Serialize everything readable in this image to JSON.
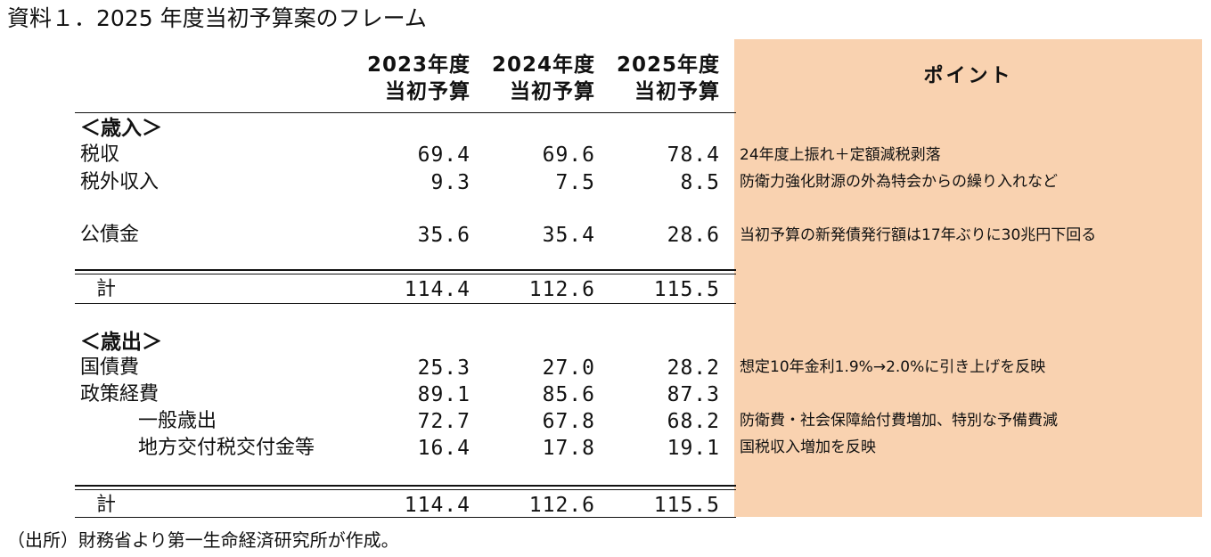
{
  "title": "資料１．2025 年度当初予算案のフレーム",
  "headers": {
    "y2023": {
      "line1": "2023年度",
      "line2": "当初予算"
    },
    "y2024": {
      "line1": "2024年度",
      "line2": "当初予算"
    },
    "y2025": {
      "line1": "2025年度",
      "line2": "当初予算"
    },
    "point": "ポイント"
  },
  "revenue": {
    "section_label": "＜歳入＞",
    "rows": [
      {
        "label": "税収",
        "v2023": "69.4",
        "v2024": "69.6",
        "v2025": "78.4",
        "note": "24年度上振れ＋定額減税剥落"
      },
      {
        "label": "税外収入",
        "v2023": "9.3",
        "v2024": "7.5",
        "v2025": "8.5",
        "note": "防衛力強化財源の外為特会からの繰り入れなど"
      },
      {
        "label": "公債金",
        "v2023": "35.6",
        "v2024": "35.4",
        "v2025": "28.6",
        "note": "当初予算の新発債発行額は17年ぶりに30兆円下回る"
      }
    ],
    "total": {
      "label": "計",
      "v2023": "114.4",
      "v2024": "112.6",
      "v2025": "115.5"
    }
  },
  "expenditure": {
    "section_label": "＜歳出＞",
    "rows": [
      {
        "label": "国債費",
        "v2023": "25.3",
        "v2024": "27.0",
        "v2025": "28.2",
        "note": "想定10年金利1.9%→2.0%に引き上げを反映"
      },
      {
        "label": "政策経費",
        "v2023": "89.1",
        "v2024": "85.6",
        "v2025": "87.3",
        "note": ""
      },
      {
        "label": "一般歳出",
        "v2023": "72.7",
        "v2024": "67.8",
        "v2025": "68.2",
        "note": "防衛費・社会保障給付費増加、特別な予備費減"
      },
      {
        "label": "地方交付税交付金等",
        "v2023": "16.4",
        "v2024": "17.8",
        "v2025": "19.1",
        "note": "国税収入増加を反映"
      }
    ],
    "total": {
      "label": "計",
      "v2023": "114.4",
      "v2024": "112.6",
      "v2025": "115.5"
    }
  },
  "source": "（出所）財務省より第一生命経済研究所が作成。",
  "colors": {
    "point_panel": "#f9d2b0",
    "text": "#111111"
  }
}
